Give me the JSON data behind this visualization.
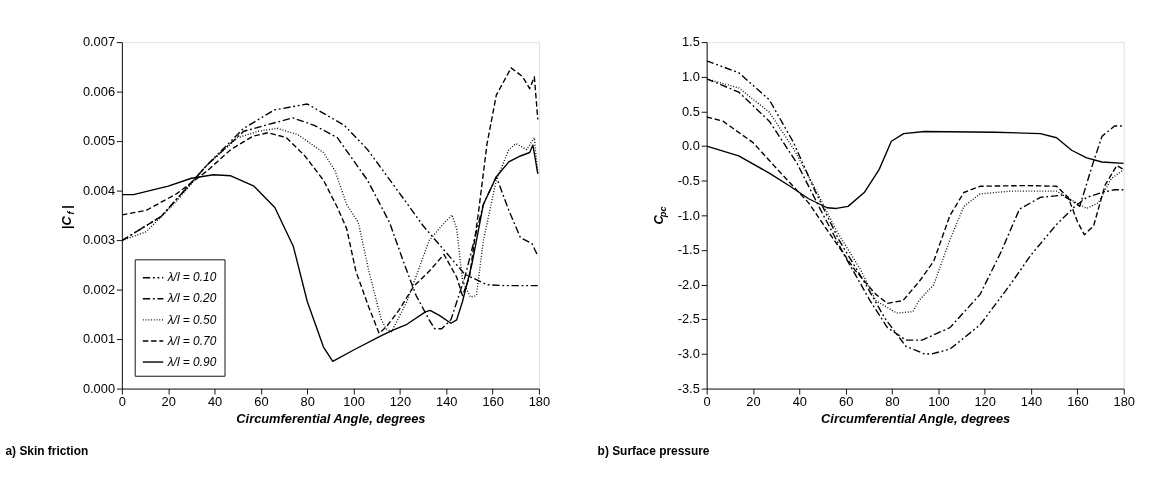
{
  "chart_data": [
    {
      "type": "line",
      "title": "a) Skin friction",
      "xlabel": "Circumferential Angle, degrees",
      "ylabel": "|C$_{f}$|",
      "xlim": [
        0,
        180
      ],
      "xticks": [
        0,
        20,
        40,
        60,
        80,
        100,
        120,
        140,
        160,
        180
      ],
      "ylim": [
        0,
        0.007
      ],
      "yticks": [
        {
          "value": 0,
          "label": "0.000"
        },
        {
          "value": 0.001,
          "label": "0.001"
        },
        {
          "value": 0.002,
          "label": "0.002"
        },
        {
          "value": 0.003,
          "label": "0.003"
        },
        {
          "value": 0.004,
          "label": "0.004"
        },
        {
          "value": 0.005,
          "label": "0.005"
        },
        {
          "value": 0.006,
          "label": "0.006"
        },
        {
          "value": 0.007,
          "label": "0.007"
        }
      ],
      "grid": false,
      "legend": "bottom left",
      "series": [
        {
          "name": "λ/l = 0.10",
          "color": "#000000",
          "line_style": "dashdotdot",
          "x": [
            0,
            17,
            36.8,
            52.6,
            65.8,
            80,
            96,
            106,
            119.5,
            130,
            139,
            148,
            157.6,
            165.5,
            179.5
          ],
          "values": [
            0.00299,
            0.00348,
            0.00452,
            0.00526,
            0.00563,
            0.00575,
            0.00532,
            0.00483,
            0.00397,
            0.00329,
            0.0028,
            0.00231,
            0.0021,
            0.00208,
            0.00208
          ]
        },
        {
          "name": "λ/l = 0.20",
          "color": "#000000",
          "line_style": "dashdot",
          "x": [
            0,
            17,
            36.8,
            52.6,
            73.7,
            83,
            93,
            106,
            115.5,
            122,
            127,
            132.6,
            135,
            138,
            142,
            148,
            156,
            161.6,
            167,
            172,
            177,
            179.5
          ],
          "values": [
            0.00299,
            0.00348,
            0.00452,
            0.0052,
            0.00547,
            0.00532,
            0.00507,
            0.00421,
            0.00336,
            0.0025,
            0.00188,
            0.00139,
            0.00121,
            0.00121,
            0.00139,
            0.00225,
            0.00372,
            0.00428,
            0.0036,
            0.00305,
            0.00293,
            0.00268
          ]
        },
        {
          "name": "λ/l = 0.50",
          "color": "#000000",
          "line_style": "dotted",
          "x": [
            0,
            10.5,
            23.7,
            36.8,
            50,
            59,
            67,
            76,
            87,
            92,
            97,
            102,
            106.6,
            112,
            114,
            116.4,
            123,
            132.6,
            138,
            142.5,
            144.5,
            147,
            150.4,
            153,
            156,
            161.6,
            167,
            170,
            174.7,
            178,
            179.5
          ],
          "values": [
            0.00299,
            0.00317,
            0.00379,
            0.00452,
            0.00507,
            0.0052,
            0.00526,
            0.00513,
            0.00477,
            0.0044,
            0.00372,
            0.00336,
            0.00237,
            0.00139,
            0.00121,
            0.00115,
            0.00176,
            0.00299,
            0.00329,
            0.00351,
            0.00323,
            0.00219,
            0.00185,
            0.00188,
            0.00299,
            0.00421,
            0.00483,
            0.00495,
            0.00483,
            0.00507,
            0.00434
          ]
        },
        {
          "name": "λ/l = 0.70",
          "color": "#000000",
          "line_style": "dashed",
          "x": [
            0,
            10.5,
            23.7,
            36.8,
            47,
            56.6,
            63,
            71,
            79,
            87,
            93,
            97,
            101,
            106.6,
            111,
            114,
            119.5,
            126,
            132.6,
            139,
            144.5,
            147,
            150,
            154,
            157.6,
            161.6,
            168,
            173,
            176,
            178,
            179.5
          ],
          "values": [
            0.00351,
            0.0036,
            0.00394,
            0.0044,
            0.00483,
            0.0051,
            0.00517,
            0.00507,
            0.0047,
            0.00421,
            0.00366,
            0.00323,
            0.00237,
            0.00164,
            0.00112,
            0.00124,
            0.00158,
            0.00207,
            0.00237,
            0.00271,
            0.00225,
            0.00188,
            0.00225,
            0.0036,
            0.00495,
            0.00593,
            0.00648,
            0.0063,
            0.00606,
            0.0063,
            0.00544
          ]
        },
        {
          "name": "λ/l = 0.90",
          "color": "#000000",
          "line_style": "solid",
          "x": [
            0,
            5,
            20,
            30,
            39.5,
            47,
            57,
            66,
            74,
            80,
            87,
            91,
            100,
            112,
            117,
            123,
            131,
            133,
            137,
            142,
            144.5,
            147,
            151,
            156,
            161.6,
            167,
            172,
            176,
            177.4,
            179.5
          ],
          "values": [
            0.00392,
            0.00392,
            0.00409,
            0.00425,
            0.00432,
            0.0043,
            0.00409,
            0.00366,
            0.00287,
            0.00176,
            0.00084,
            0.00055,
            0.00078,
            0.00107,
            0.00118,
            0.0013,
            0.00155,
            0.00158,
            0.00148,
            0.00132,
            0.00139,
            0.00176,
            0.0025,
            0.00372,
            0.00428,
            0.00458,
            0.0047,
            0.00477,
            0.00492,
            0.00434
          ]
        }
      ]
    },
    {
      "type": "line",
      "title": "b) Surface pressure",
      "xlabel": "Circumferential Angle, degrees",
      "ylabel": "C$_{pc}$",
      "xlim": [
        0,
        180
      ],
      "xticks": [
        0,
        20,
        40,
        60,
        80,
        100,
        120,
        140,
        160,
        180
      ],
      "ylim": [
        -3.5,
        1.5
      ],
      "yticks": [
        {
          "value": -3.5,
          "label": "-3.5"
        },
        {
          "value": -3,
          "label": "-3.0"
        },
        {
          "value": -2.5,
          "label": "-2.5"
        },
        {
          "value": -2,
          "label": "-2.0"
        },
        {
          "value": -1.5,
          "label": "-1.5"
        },
        {
          "value": -1,
          "label": "-1.0"
        },
        {
          "value": -0.5,
          "label": "-0.5"
        },
        {
          "value": 0,
          "label": "0.0"
        },
        {
          "value": 0.5,
          "label": "0.5"
        },
        {
          "value": 1,
          "label": "1.0"
        },
        {
          "value": 1.5,
          "label": "1.5"
        }
      ],
      "grid": false,
      "legend": "bottom left",
      "series": [
        {
          "name": "λ/l = 0.10",
          "color": "#000000",
          "line_style": "dashdotdot",
          "x": [
            0,
            13.8,
            27,
            37.5,
            46.8,
            57,
            68,
            77,
            86,
            94,
            97,
            105,
            118,
            131,
            140,
            151,
            159,
            164,
            170.6,
            176,
            180
          ],
          "values": [
            1.23,
            1.06,
            0.67,
            0.05,
            -0.65,
            -1.35,
            -1.96,
            -2.49,
            -2.89,
            -3.0,
            -3.0,
            -2.93,
            -2.58,
            -2.0,
            -1.57,
            -1.13,
            -0.87,
            -0.74,
            -0.67,
            -0.63,
            -0.63
          ]
        },
        {
          "name": "λ/l = 0.20",
          "color": "#000000",
          "line_style": "dashdot",
          "x": [
            0,
            13.8,
            27,
            39,
            49,
            60,
            70.5,
            78,
            86,
            93,
            105,
            118,
            127,
            135,
            144,
            153.5,
            159,
            161,
            166.7,
            170.6,
            176,
            180
          ],
          "values": [
            0.97,
            0.78,
            0.36,
            -0.25,
            -0.91,
            -1.61,
            -2.23,
            -2.62,
            -2.8,
            -2.8,
            -2.62,
            -2.14,
            -1.53,
            -0.91,
            -0.74,
            -0.71,
            -0.82,
            -0.87,
            -0.25,
            0.14,
            0.29,
            0.29
          ]
        },
        {
          "name": "λ/l = 0.50",
          "color": "#000000",
          "line_style": "dotted",
          "x": [
            0,
            13.8,
            27,
            37.5,
            46.8,
            56,
            66.5,
            73,
            82,
            89,
            91.6,
            98,
            105,
            111,
            118,
            131,
            151,
            157.5,
            164,
            169,
            174.6,
            180
          ],
          "values": [
            0.97,
            0.84,
            0.49,
            -0.04,
            -0.61,
            -1.22,
            -1.79,
            -2.23,
            -2.41,
            -2.39,
            -2.23,
            -2.0,
            -1.35,
            -0.87,
            -0.69,
            -0.65,
            -0.65,
            -0.78,
            -0.9,
            -0.82,
            -0.47,
            -0.34
          ]
        },
        {
          "name": "λ/l = 0.70",
          "color": "#000000",
          "line_style": "dashed",
          "x": [
            0,
            7,
            20,
            32,
            44,
            53,
            64,
            73,
            78,
            84.7,
            91.6,
            98,
            105,
            111,
            118,
            137.7,
            151,
            156,
            160,
            163,
            167,
            172,
            177,
            180
          ],
          "values": [
            0.42,
            0.36,
            0.05,
            -0.39,
            -0.82,
            -1.26,
            -1.79,
            -2.14,
            -2.27,
            -2.23,
            -1.96,
            -1.66,
            -1.0,
            -0.67,
            -0.58,
            -0.57,
            -0.58,
            -0.74,
            -1.09,
            -1.28,
            -1.15,
            -0.56,
            -0.28,
            -0.34
          ]
        },
        {
          "name": "λ/l = 0.90",
          "color": "#000000",
          "line_style": "solid",
          "x": [
            0,
            13.8,
            27,
            36,
            44,
            52,
            56,
            61,
            68,
            74.4,
            79.7,
            85,
            94,
            124.5,
            144,
            151,
            157.5,
            164,
            170.6,
            180
          ],
          "values": [
            0.0,
            -0.14,
            -0.39,
            -0.58,
            -0.76,
            -0.89,
            -0.9,
            -0.87,
            -0.67,
            -0.34,
            0.07,
            0.18,
            0.21,
            0.2,
            0.18,
            0.12,
            -0.06,
            -0.17,
            -0.23,
            -0.25
          ]
        }
      ]
    }
  ]
}
